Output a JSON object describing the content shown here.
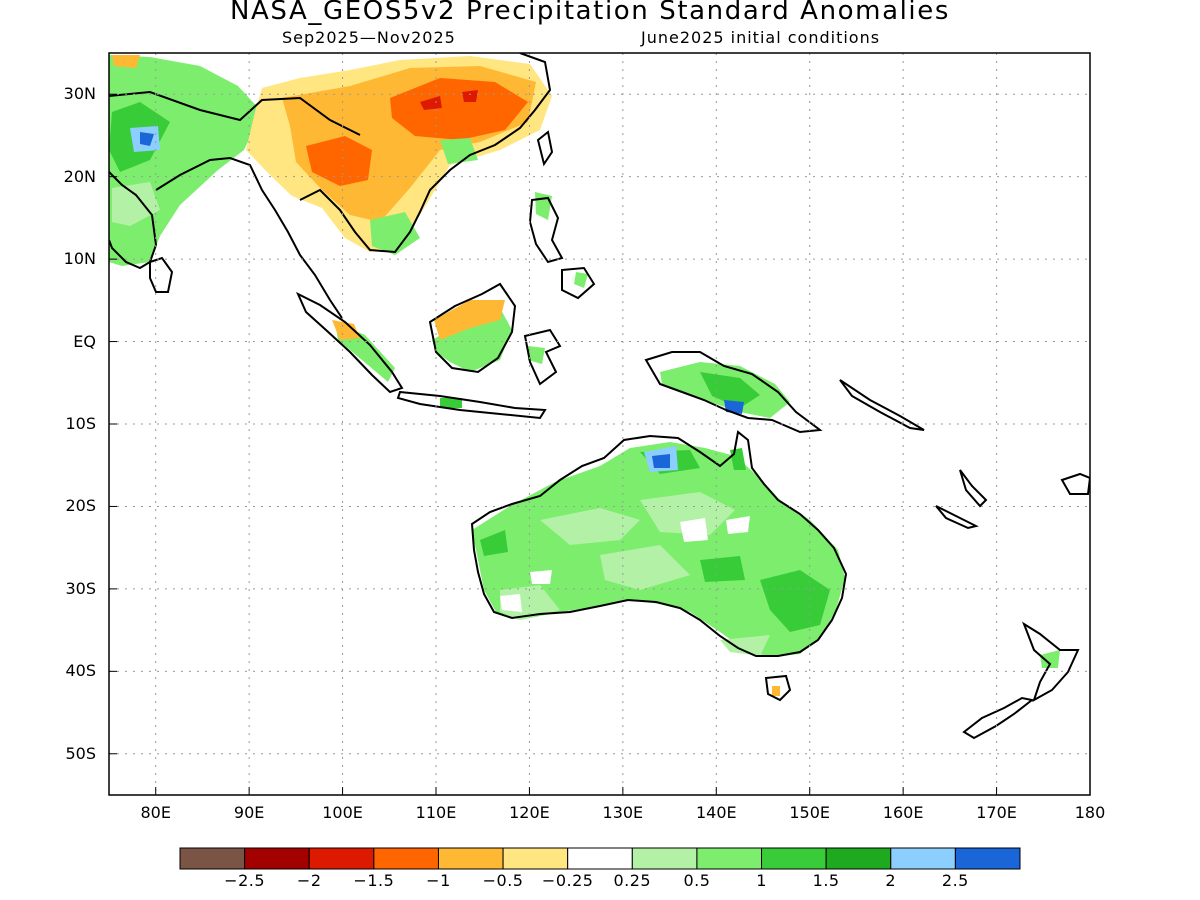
{
  "title": "NASA_GEOS5v2 Precipitation Standard Anomalies",
  "subtitle_left": "Sep2025—Nov2025",
  "subtitle_right": "June2025 initial conditions",
  "map": {
    "lon_range": [
      75,
      180
    ],
    "lat_range": [
      -55,
      35
    ],
    "lat_labels": [
      "30N",
      "20N",
      "10N",
      "EQ",
      "10S",
      "20S",
      "30S",
      "40S",
      "50S"
    ],
    "lat_values": [
      30,
      20,
      10,
      0,
      -10,
      -20,
      -30,
      -40,
      -50
    ],
    "lon_labels": [
      "80E",
      "90E",
      "100E",
      "110E",
      "120E",
      "130E",
      "140E",
      "150E",
      "160E",
      "170E",
      "180"
    ],
    "lon_values": [
      80,
      90,
      100,
      110,
      120,
      130,
      140,
      150,
      160,
      170,
      180
    ],
    "grid": "dotted"
  },
  "colorbar": {
    "colors": [
      "#7a5545",
      "#a30000",
      "#dd1a00",
      "#ff6600",
      "#ffb833",
      "#ffe680",
      "#ffffff",
      "#b3f2a6",
      "#7ded6e",
      "#38cc38",
      "#1eaa1e",
      "#8ccfff",
      "#1a66d9"
    ],
    "labels": [
      "−2.5",
      "−2",
      "−1.5",
      "−1",
      "−0.5",
      "−0.25",
      "0.25",
      "0.5",
      "1",
      "1.5",
      "2",
      "2.5"
    ]
  }
}
